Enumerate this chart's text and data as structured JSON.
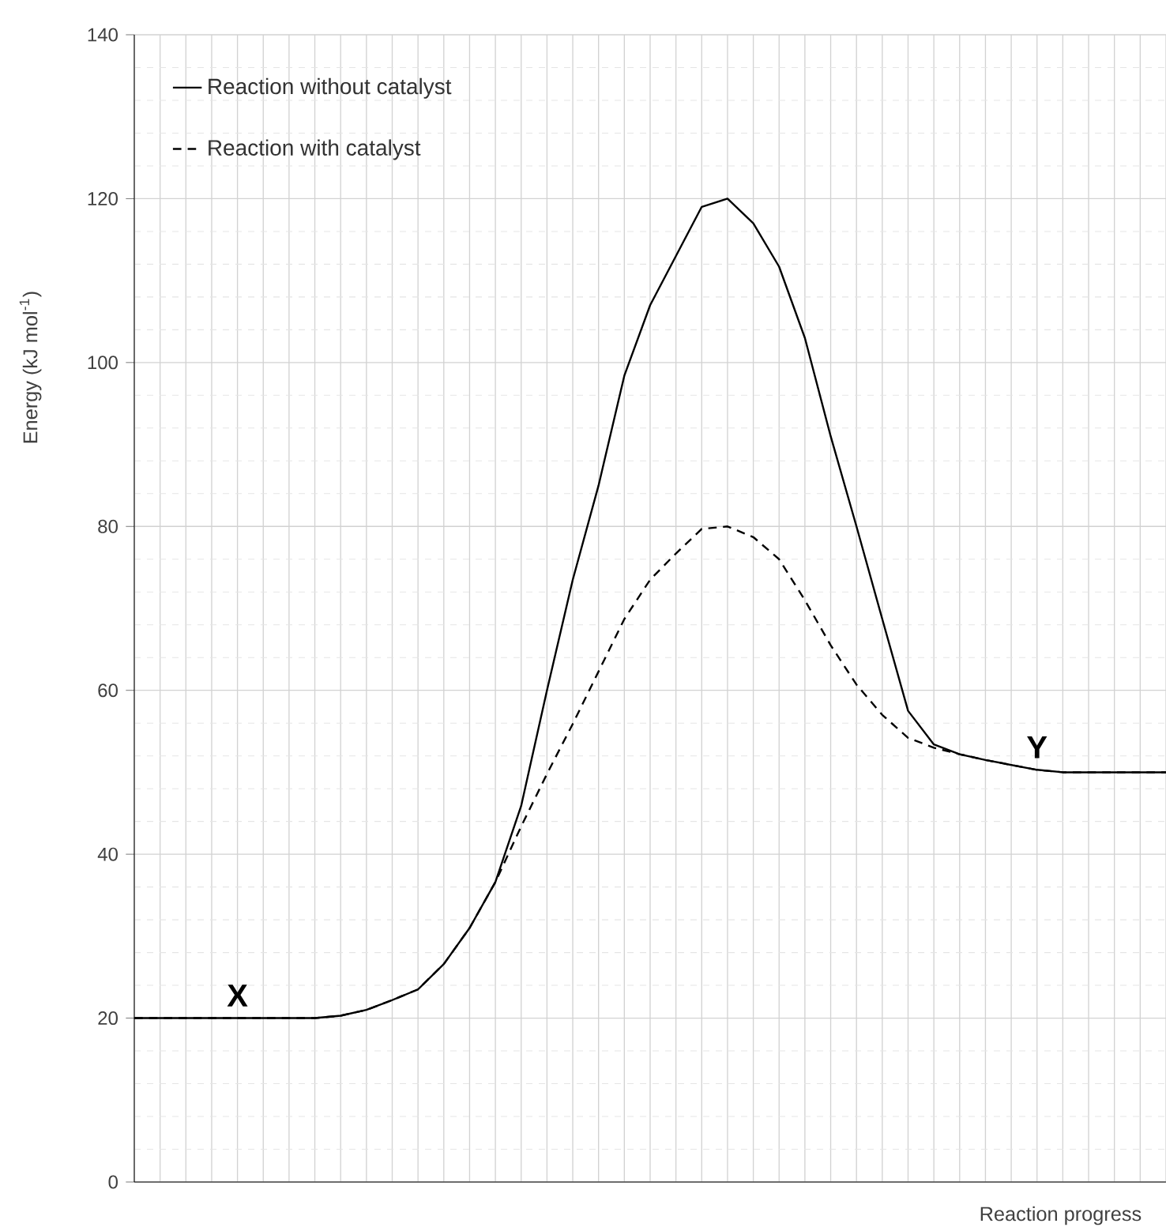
{
  "chart_data": {
    "type": "line",
    "xlabel": "Reaction progress",
    "ylabel": "Energy (kJ mol$^{-1}$)",
    "categories": [
      null,
      null,
      null,
      null,
      null,
      null,
      null,
      null,
      null,
      null,
      null,
      null,
      null,
      null,
      null,
      null,
      null,
      null,
      null,
      null,
      null,
      null,
      null,
      null,
      null,
      null,
      null,
      null,
      null,
      null,
      null,
      null,
      null,
      null,
      null,
      null,
      null,
      null,
      null,
      null,
      null
    ],
    "series": [
      {
        "name": "Reaction without catalyst",
        "color": "#000000",
        "line_style": "solid",
        "values": [
          20,
          20,
          20,
          20,
          20,
          20,
          20,
          20,
          20.3,
          21,
          22.2,
          23.5,
          26.6,
          31,
          36.6,
          45.9,
          60,
          73.5,
          85,
          98.4,
          107,
          113,
          119,
          120,
          117,
          111.7,
          103,
          91,
          80,
          68.7,
          57.5,
          53.4,
          52.2,
          51.5,
          50.9,
          50.3,
          50,
          50,
          50,
          50,
          50
        ]
      },
      {
        "name": "Reaction with catalyst",
        "color": "#000000",
        "line_style": "dashed",
        "values": [
          20,
          20,
          20,
          20,
          20,
          20,
          20,
          20,
          20.3,
          21,
          22.2,
          23.5,
          26.6,
          31,
          36.6,
          43.4,
          49.8,
          55.9,
          62.3,
          68.7,
          73.5,
          76.7,
          79.7,
          80,
          78.7,
          76,
          71,
          65.5,
          60.7,
          57,
          54.2,
          53,
          52.2,
          51.5,
          50.9,
          50.3,
          50,
          50,
          50,
          50,
          50
        ]
      }
    ],
    "ylim": [
      0,
      140
    ],
    "yticks": [
      0,
      20,
      40,
      60,
      80,
      100,
      120,
      140
    ],
    "grid": true,
    "tick_labels": "y",
    "legend": "top left",
    "annotations": [
      "X",
      "Y"
    ]
  }
}
